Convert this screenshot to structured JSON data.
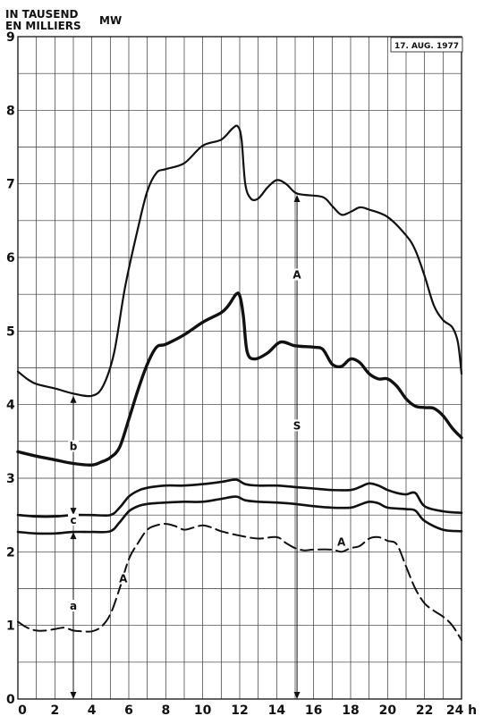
{
  "chart_data": {
    "type": "line",
    "ylabel_de": "IN TAUSEND",
    "ylabel_fr": "EN MILLIERS",
    "ylabel_unit": "MW",
    "date_label": "17. AUG. 1977",
    "xlim": [
      0,
      24
    ],
    "ylim": [
      0,
      9
    ],
    "x_ticks": [
      "0",
      "2",
      "4",
      "6",
      "8",
      "10",
      "12",
      "14",
      "16",
      "18",
      "20",
      "22",
      "24 h"
    ],
    "y_ticks": [
      "0",
      "1",
      "2",
      "3",
      "4",
      "5",
      "6",
      "7",
      "8",
      "9"
    ],
    "grid": true,
    "series": [
      {
        "stroke": "#111111",
        "width": 2.2,
        "dash": "",
        "points": [
          [
            0,
            4.45
          ],
          [
            0.5,
            4.35
          ],
          [
            1,
            4.28
          ],
          [
            2,
            4.22
          ],
          [
            3,
            4.15
          ],
          [
            4,
            4.12
          ],
          [
            4.6,
            4.25
          ],
          [
            5.2,
            4.7
          ],
          [
            5.8,
            5.6
          ],
          [
            6.5,
            6.4
          ],
          [
            7,
            6.9
          ],
          [
            7.5,
            7.15
          ],
          [
            8,
            7.2
          ],
          [
            9,
            7.28
          ],
          [
            10,
            7.52
          ],
          [
            11,
            7.6
          ],
          [
            11.6,
            7.75
          ],
          [
            11.9,
            7.78
          ],
          [
            12.1,
            7.6
          ],
          [
            12.3,
            7.0
          ],
          [
            12.6,
            6.8
          ],
          [
            13,
            6.8
          ],
          [
            13.5,
            6.95
          ],
          [
            14,
            7.05
          ],
          [
            14.5,
            7.0
          ],
          [
            15,
            6.88
          ],
          [
            15.5,
            6.85
          ],
          [
            16.5,
            6.82
          ],
          [
            17,
            6.7
          ],
          [
            17.5,
            6.58
          ],
          [
            18,
            6.62
          ],
          [
            18.5,
            6.68
          ],
          [
            19,
            6.65
          ],
          [
            20,
            6.55
          ],
          [
            21,
            6.3
          ],
          [
            21.5,
            6.1
          ],
          [
            22,
            5.75
          ],
          [
            22.5,
            5.35
          ],
          [
            23,
            5.15
          ],
          [
            23.5,
            5.05
          ],
          [
            23.8,
            4.85
          ],
          [
            24,
            4.42
          ]
        ]
      },
      {
        "stroke": "#111111",
        "width": 3.4,
        "dash": "",
        "points": [
          [
            0,
            3.36
          ],
          [
            1,
            3.3
          ],
          [
            2,
            3.25
          ],
          [
            3,
            3.2
          ],
          [
            4,
            3.18
          ],
          [
            4.5,
            3.22
          ],
          [
            5,
            3.28
          ],
          [
            5.5,
            3.42
          ],
          [
            6,
            3.8
          ],
          [
            6.5,
            4.2
          ],
          [
            7,
            4.55
          ],
          [
            7.5,
            4.78
          ],
          [
            8,
            4.82
          ],
          [
            9,
            4.95
          ],
          [
            10,
            5.12
          ],
          [
            11,
            5.25
          ],
          [
            11.4,
            5.35
          ],
          [
            11.8,
            5.5
          ],
          [
            12,
            5.48
          ],
          [
            12.2,
            5.2
          ],
          [
            12.4,
            4.72
          ],
          [
            12.8,
            4.62
          ],
          [
            13.5,
            4.7
          ],
          [
            14.2,
            4.85
          ],
          [
            15,
            4.8
          ],
          [
            16,
            4.78
          ],
          [
            16.5,
            4.75
          ],
          [
            17,
            4.55
          ],
          [
            17.5,
            4.52
          ],
          [
            18,
            4.62
          ],
          [
            18.5,
            4.57
          ],
          [
            19,
            4.42
          ],
          [
            19.5,
            4.35
          ],
          [
            20,
            4.35
          ],
          [
            20.5,
            4.25
          ],
          [
            21,
            4.08
          ],
          [
            21.5,
            3.98
          ],
          [
            22,
            3.96
          ],
          [
            22.5,
            3.95
          ],
          [
            23,
            3.85
          ],
          [
            23.5,
            3.68
          ],
          [
            24,
            3.55
          ]
        ]
      },
      {
        "stroke": "#111111",
        "width": 2.6,
        "dash": "",
        "points": [
          [
            0,
            2.5
          ],
          [
            1,
            2.48
          ],
          [
            2,
            2.48
          ],
          [
            3,
            2.5
          ],
          [
            4,
            2.5
          ],
          [
            5,
            2.5
          ],
          [
            5.5,
            2.6
          ],
          [
            6,
            2.75
          ],
          [
            6.5,
            2.83
          ],
          [
            7,
            2.87
          ],
          [
            8,
            2.9
          ],
          [
            9,
            2.9
          ],
          [
            10,
            2.92
          ],
          [
            11,
            2.95
          ],
          [
            11.8,
            2.98
          ],
          [
            12.3,
            2.92
          ],
          [
            13,
            2.9
          ],
          [
            14,
            2.9
          ],
          [
            15,
            2.88
          ],
          [
            16,
            2.86
          ],
          [
            17,
            2.84
          ],
          [
            18,
            2.84
          ],
          [
            18.5,
            2.88
          ],
          [
            19,
            2.93
          ],
          [
            19.5,
            2.9
          ],
          [
            20,
            2.84
          ],
          [
            20.5,
            2.8
          ],
          [
            21,
            2.78
          ],
          [
            21.5,
            2.8
          ],
          [
            22,
            2.62
          ],
          [
            23,
            2.55
          ],
          [
            24,
            2.53
          ]
        ]
      },
      {
        "stroke": "#111111",
        "width": 2.6,
        "dash": "",
        "points": [
          [
            0,
            2.27
          ],
          [
            1,
            2.25
          ],
          [
            2,
            2.25
          ],
          [
            3,
            2.27
          ],
          [
            4,
            2.27
          ],
          [
            5,
            2.28
          ],
          [
            5.5,
            2.4
          ],
          [
            6,
            2.55
          ],
          [
            6.5,
            2.62
          ],
          [
            7,
            2.65
          ],
          [
            8,
            2.67
          ],
          [
            9,
            2.68
          ],
          [
            10,
            2.68
          ],
          [
            11,
            2.72
          ],
          [
            11.8,
            2.75
          ],
          [
            12.3,
            2.7
          ],
          [
            13,
            2.68
          ],
          [
            14,
            2.67
          ],
          [
            15,
            2.65
          ],
          [
            16,
            2.62
          ],
          [
            17,
            2.6
          ],
          [
            18,
            2.6
          ],
          [
            18.5,
            2.64
          ],
          [
            19,
            2.68
          ],
          [
            19.5,
            2.66
          ],
          [
            20,
            2.6
          ],
          [
            21,
            2.58
          ],
          [
            21.5,
            2.56
          ],
          [
            22,
            2.42
          ],
          [
            23,
            2.3
          ],
          [
            24,
            2.28
          ]
        ]
      },
      {
        "stroke": "#111111",
        "width": 2.0,
        "dash": "14 6",
        "points": [
          [
            0,
            1.05
          ],
          [
            0.5,
            0.97
          ],
          [
            1,
            0.93
          ],
          [
            1.5,
            0.93
          ],
          [
            2,
            0.95
          ],
          [
            2.5,
            0.97
          ],
          [
            3,
            0.93
          ],
          [
            3.5,
            0.92
          ],
          [
            4,
            0.92
          ],
          [
            4.5,
            0.98
          ],
          [
            5,
            1.15
          ],
          [
            5.5,
            1.5
          ],
          [
            6,
            1.9
          ],
          [
            6.5,
            2.12
          ],
          [
            7,
            2.3
          ],
          [
            7.5,
            2.36
          ],
          [
            8,
            2.38
          ],
          [
            8.5,
            2.35
          ],
          [
            9,
            2.3
          ],
          [
            9.5,
            2.33
          ],
          [
            10,
            2.36
          ],
          [
            10.5,
            2.33
          ],
          [
            11,
            2.28
          ],
          [
            12,
            2.22
          ],
          [
            13,
            2.18
          ],
          [
            14,
            2.2
          ],
          [
            14.5,
            2.12
          ],
          [
            15,
            2.05
          ],
          [
            15.5,
            2.02
          ],
          [
            16,
            2.03
          ],
          [
            17,
            2.03
          ],
          [
            17.5,
            2.0
          ],
          [
            18,
            2.05
          ],
          [
            18.5,
            2.08
          ],
          [
            19,
            2.18
          ],
          [
            19.5,
            2.2
          ],
          [
            20,
            2.15
          ],
          [
            20.5,
            2.1
          ],
          [
            21,
            1.8
          ],
          [
            21.5,
            1.5
          ],
          [
            22,
            1.3
          ],
          [
            22.5,
            1.2
          ],
          [
            23,
            1.12
          ],
          [
            23.5,
            1.0
          ],
          [
            24,
            0.8
          ]
        ]
      }
    ],
    "annotations": [
      {
        "text": "A",
        "x": 15.1,
        "y": 5.75
      },
      {
        "text": "S",
        "x": 15.1,
        "y": 3.7
      },
      {
        "text": "b",
        "x": 3.0,
        "y": 3.42
      },
      {
        "text": "c",
        "x": 3.0,
        "y": 2.42
      },
      {
        "text": "a",
        "x": 3.0,
        "y": 1.25
      },
      {
        "text": "A",
        "x": 5.7,
        "y": 1.62
      },
      {
        "text": "A",
        "x": 17.5,
        "y": 2.12
      }
    ],
    "arrows": [
      {
        "x": 3.0,
        "y_top": 4.12,
        "y_bottom": 2.5
      },
      {
        "x": 3.0,
        "y_top": 2.27,
        "y_bottom": 0
      },
      {
        "x": 15.1,
        "y_top": 6.85,
        "y_bottom": 0
      }
    ]
  }
}
